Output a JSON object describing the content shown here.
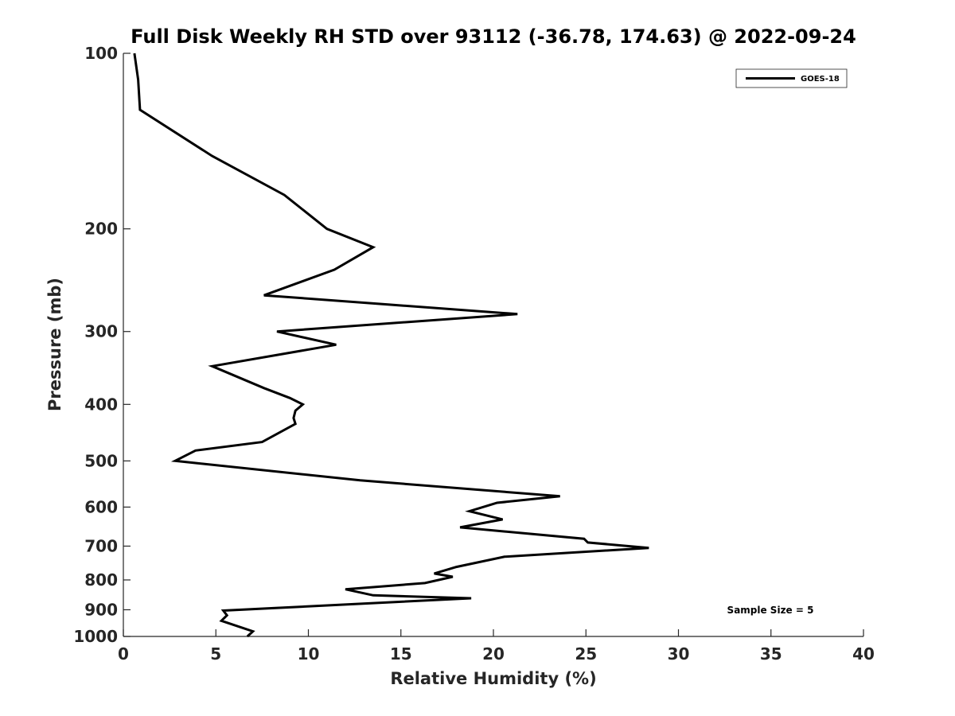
{
  "chart_data": {
    "type": "line",
    "title": "Full Disk Weekly RH STD over 93112 (-36.78, 174.63) @ 2022-09-24",
    "xlabel": "Relative Humidity (%)",
    "ylabel": "Pressure (mb)",
    "xlim": [
      0,
      40
    ],
    "ylim": [
      100,
      1000
    ],
    "yscale": "log",
    "y_reversed": true,
    "x_ticks": [
      0,
      5,
      10,
      15,
      20,
      25,
      30,
      35,
      40
    ],
    "y_ticks": [
      100,
      200,
      300,
      400,
      500,
      600,
      700,
      800,
      900,
      1000
    ],
    "grid": false,
    "legend_position": "top-right",
    "series": [
      {
        "name": "GOES-18",
        "color": "#000000",
        "x": [
          0.6,
          0.8,
          0.9,
          4.8,
          8.7,
          11.0,
          13.5,
          11.4,
          7.6,
          21.3,
          8.3,
          11.5,
          4.8,
          7.6,
          9.0,
          9.7,
          9.3,
          9.2,
          9.3,
          7.5,
          3.9,
          2.8,
          12.8,
          23.6,
          20.2,
          18.7,
          20.5,
          18.2,
          24.9,
          25.1,
          28.4,
          20.6,
          18.0,
          16.8,
          17.8,
          16.3,
          12.0,
          13.5,
          18.8,
          5.4,
          5.6,
          5.3,
          7.0,
          6.7
        ],
        "y": [
          100,
          111,
          125,
          150,
          175,
          200,
          215,
          235,
          260,
          280,
          300,
          316,
          344,
          375,
          390,
          400,
          410,
          422,
          432,
          464,
          480,
          500,
          540,
          575,
          590,
          610,
          630,
          650,
          680,
          690,
          705,
          730,
          760,
          780,
          790,
          810,
          830,
          850,
          860,
          903,
          920,
          940,
          980,
          1000
        ]
      }
    ],
    "annotations": [
      "Sample Size = 5"
    ]
  }
}
